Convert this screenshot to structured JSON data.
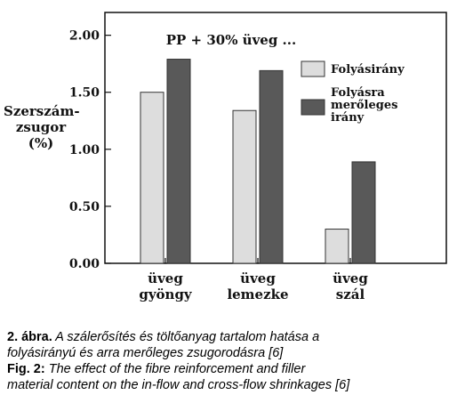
{
  "chart_data": {
    "type": "bar",
    "title": "PP + 30% üveg ...",
    "ylabel": [
      "Szerszám-",
      "zsugor",
      "(%)"
    ],
    "ylim": [
      0,
      2.2
    ],
    "yticks": [
      "0.00",
      "0.50",
      "1.00",
      "1.50",
      "2.00"
    ],
    "categories": [
      [
        "üveg",
        "gyöngy"
      ],
      [
        "üveg",
        "lemezke"
      ],
      [
        "üveg",
        "szál"
      ]
    ],
    "series": [
      {
        "name": "Folyásirány",
        "values": [
          1.5,
          1.34,
          0.3
        ],
        "color": "#dddddd"
      },
      {
        "name": "Folyásra merőleges irány",
        "values": [
          1.79,
          1.69,
          0.89
        ],
        "color": "#595959"
      }
    ],
    "legend": {
      "placement": "right",
      "entries": [
        {
          "lines": [
            "Folyásirány"
          ]
        },
        {
          "lines": [
            "Folyásra",
            "merőleges",
            "irány"
          ]
        }
      ]
    },
    "grid": false
  },
  "caption": {
    "hu_label": "2. ábra.",
    "hu_text_1": " A szálerősítés és töltőanyag tartalom hatása a",
    "hu_text_2": "folyásirányú és arra merőleges zsugorodásra [6]",
    "en_label": "Fig. 2:",
    "en_text_1": " The effect of the fibre reinforcement and filler",
    "en_text_2": " material content on the in-flow and cross-flow shrinkages [6]"
  }
}
